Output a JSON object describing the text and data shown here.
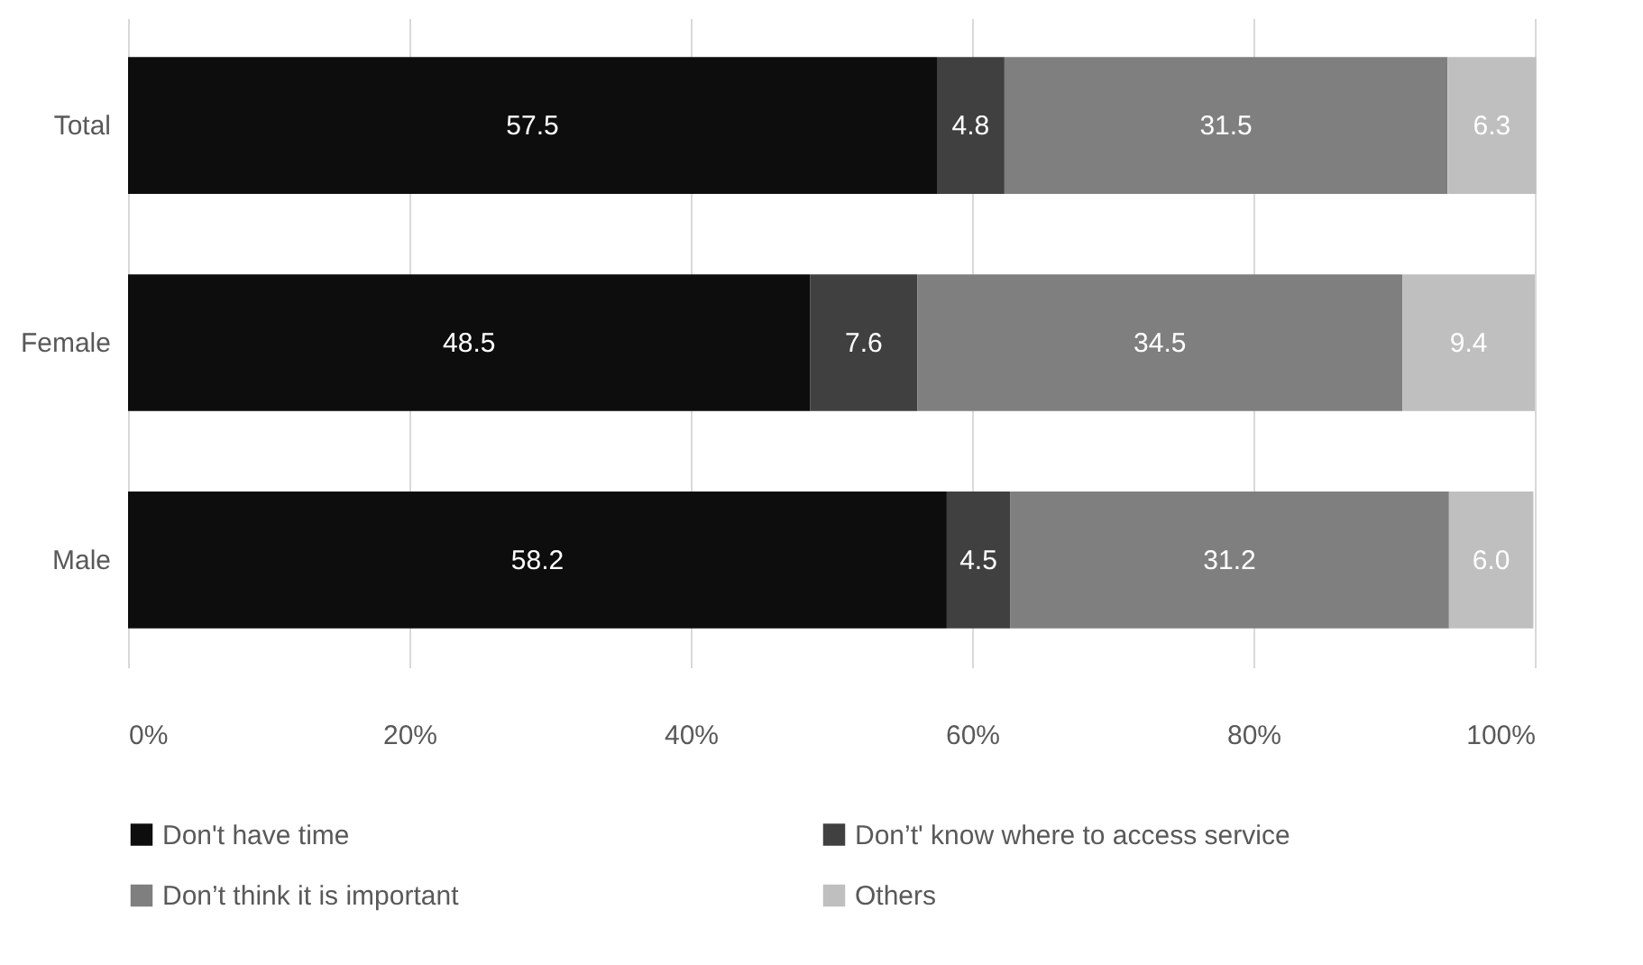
{
  "chart_data": {
    "type": "bar",
    "orientation": "horizontal",
    "stacked": true,
    "categories": [
      "Total",
      "Female",
      "Male"
    ],
    "series": [
      {
        "name": "Don't have time",
        "color": "#0d0d0d",
        "values": [
          57.5,
          48.5,
          58.2
        ],
        "value_labels": [
          "57.5",
          "48.5",
          "58.2"
        ]
      },
      {
        "name": "Don’t' know where to access service",
        "color": "#404040",
        "values": [
          4.8,
          7.6,
          4.5
        ],
        "value_labels": [
          "4.8",
          "7.6",
          "4.5"
        ]
      },
      {
        "name": "Don’t think it is important",
        "color": "#7f7f7f",
        "values": [
          31.5,
          34.5,
          31.2
        ],
        "value_labels": [
          "31.5",
          "34.5",
          "31.2"
        ]
      },
      {
        "name": "Others",
        "color": "#bfbfbf",
        "values": [
          6.3,
          9.4,
          6.0
        ],
        "value_labels": [
          "6.3",
          "9.4",
          "6.0"
        ]
      }
    ],
    "xlim": [
      0,
      100
    ],
    "xticks": [
      {
        "value": 0,
        "label": "0%"
      },
      {
        "value": 20,
        "label": "20%"
      },
      {
        "value": 40,
        "label": "40%"
      },
      {
        "value": 60,
        "label": "60%"
      },
      {
        "value": 80,
        "label": "80%"
      },
      {
        "value": 100,
        "label": "100%"
      }
    ],
    "grid": "x",
    "legend": "bottom"
  }
}
